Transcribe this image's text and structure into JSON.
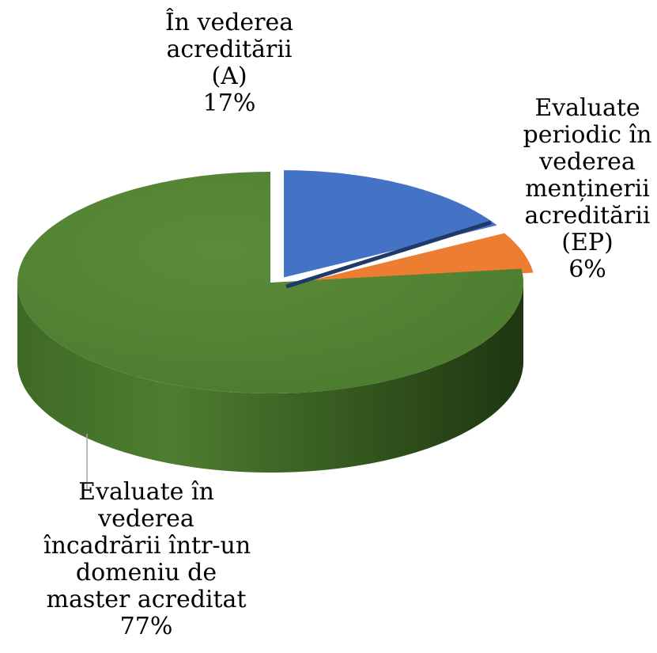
{
  "chart_data": {
    "type": "pie",
    "variant": "3d-exploded",
    "slices": [
      {
        "key": "a",
        "name_lines": [
          "În vederea",
          "acreditării",
          "(A)"
        ],
        "percent_label": "17%",
        "value": 17,
        "color": "#4472C4"
      },
      {
        "key": "ep",
        "name_lines": [
          "Evaluate",
          "periodic în",
          "vederea",
          "menținerii",
          "acreditării",
          "(EP)"
        ],
        "percent_label": "6%",
        "value": 6,
        "color": "#ED7D31"
      },
      {
        "key": "m",
        "name_lines": [
          "Evaluate în",
          "vederea",
          "încadrării într-un",
          "domeniu de",
          "master acreditat"
        ],
        "percent_label": "77%",
        "value": 77,
        "color": "#548235"
      }
    ],
    "legend": "none",
    "data_labels": "category name and percentage"
  }
}
